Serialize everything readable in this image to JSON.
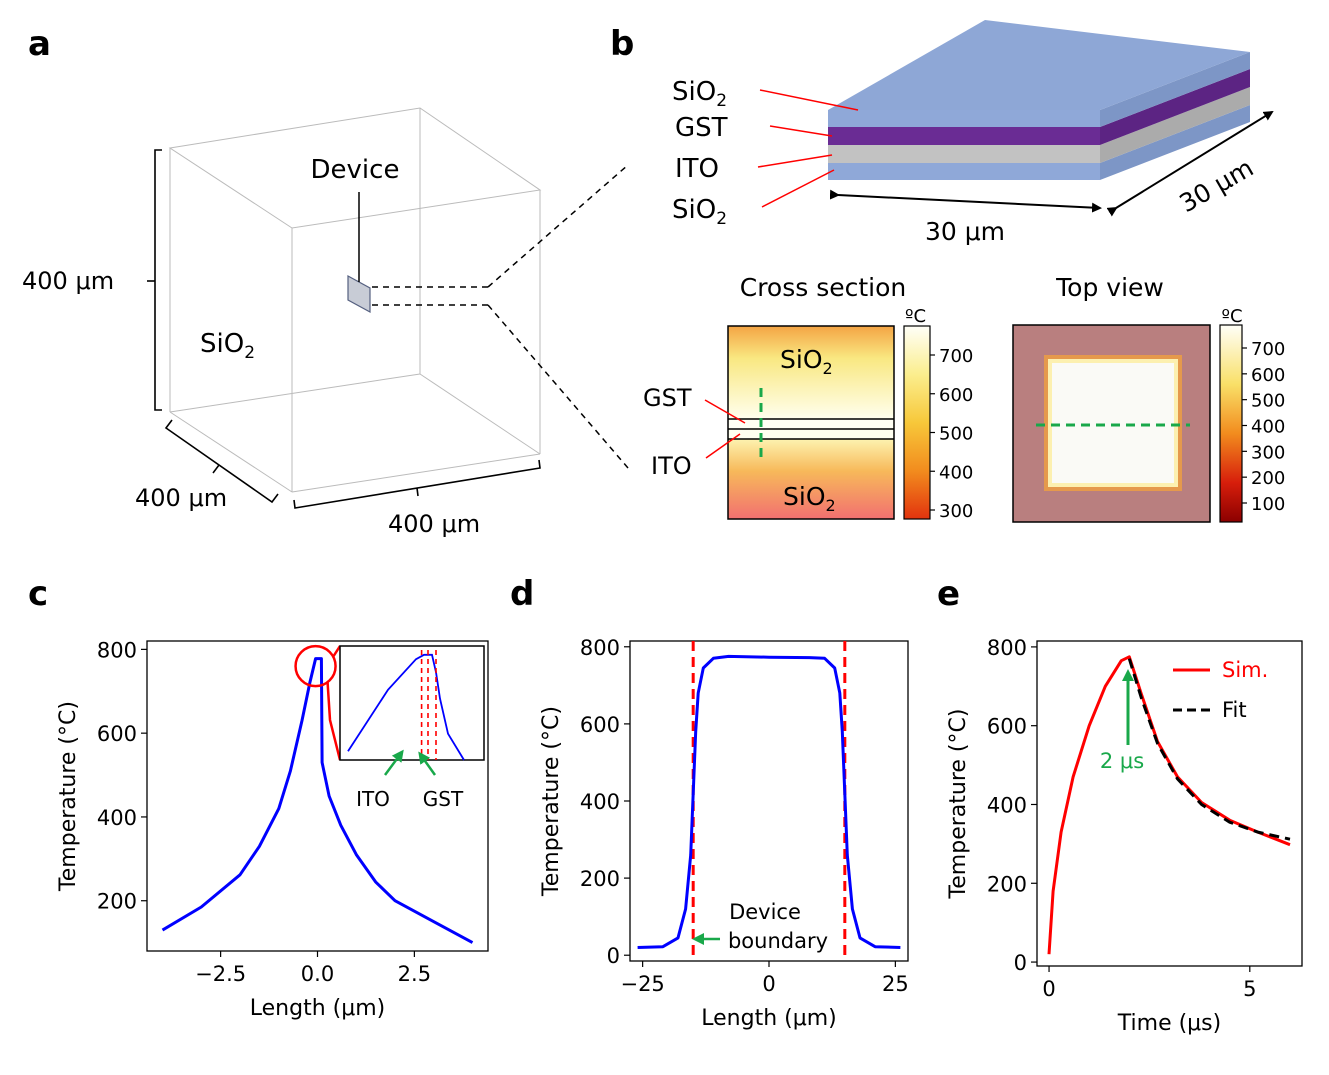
{
  "panel_labels": {
    "a": "a",
    "b": "b",
    "c": "c",
    "d": "d",
    "e": "e"
  },
  "panel_a": {
    "device_label": "Device",
    "dim_height": "400 μm",
    "dim_depth": "400 μm",
    "dim_width": "400 μm",
    "material": "SiO",
    "material_sub": "2"
  },
  "panel_b": {
    "layers": [
      {
        "name": "SiO",
        "sub": "2"
      },
      {
        "name": "GST",
        "sub": ""
      },
      {
        "name": "ITO",
        "sub": ""
      },
      {
        "name": "SiO",
        "sub": "2"
      }
    ],
    "colors": {
      "sio2": "#8FA8D8",
      "gst": "#6A2C94",
      "ito": "#BDBDBD"
    },
    "dim_width": "30 μm",
    "dim_depth": "30 μm",
    "cross_section": {
      "title": "Cross section",
      "top_label": "SiO",
      "top_sub": "2",
      "bottom_label": "SiO",
      "bottom_sub": "2",
      "gst_label": "GST",
      "ito_label": "ITO",
      "colorbar_unit": "ºC",
      "colorbar_ticks": [
        "700",
        "600",
        "500",
        "400",
        "300"
      ]
    },
    "top_view": {
      "title": "Top view",
      "colorbar_unit": "ºC",
      "colorbar_ticks": [
        "700",
        "600",
        "500",
        "400",
        "300",
        "200",
        "100"
      ]
    }
  },
  "chart_data": [
    {
      "id": "c",
      "type": "line",
      "xlabel": "Length (μm)",
      "ylabel": "Temperature (°C)",
      "xlim": [
        -4.4,
        4.4
      ],
      "ylim": [
        80,
        820
      ],
      "xticks": [
        -2.5,
        0.0,
        2.5
      ],
      "xtick_labels": [
        "−2.5",
        "0.0",
        "2.5"
      ],
      "yticks": [
        200,
        400,
        600,
        800
      ],
      "ytick_labels": [
        "200",
        "400",
        "600",
        "800"
      ],
      "series": [
        {
          "name": "Temperature",
          "color": "#0000FF",
          "x": [
            -4.0,
            -3.0,
            -2.0,
            -1.5,
            -1.0,
            -0.7,
            -0.4,
            -0.2,
            -0.05,
            0.1,
            0.12,
            0.3,
            0.6,
            1.0,
            1.5,
            2.0,
            3.0,
            4.0
          ],
          "y": [
            130,
            185,
            262,
            330,
            420,
            510,
            630,
            720,
            778,
            778,
            530,
            450,
            380,
            310,
            245,
            200,
            150,
            100
          ]
        }
      ],
      "inset": {
        "labels": [
          "ITO",
          "GST"
        ],
        "x": [
          -1.0,
          -0.5,
          -0.15,
          -0.05,
          0.05,
          0.1,
          0.15,
          0.25,
          0.45
        ],
        "y": [
          560,
          700,
          770,
          780,
          780,
          740,
          680,
          600,
          540
        ]
      }
    },
    {
      "id": "d",
      "type": "line",
      "xlabel": "Length (μm)",
      "ylabel": "Temperature (°C)",
      "xlim": [
        -27.5,
        27.5
      ],
      "ylim": [
        -15,
        815
      ],
      "xticks": [
        -25,
        0,
        25
      ],
      "xtick_labels": [
        "−25",
        "0",
        "25"
      ],
      "yticks": [
        0,
        200,
        400,
        600,
        800
      ],
      "ytick_labels": [
        "0",
        "200",
        "400",
        "600",
        "800"
      ],
      "series": [
        {
          "name": "Temperature",
          "color": "#0000FF",
          "x": [
            -26,
            -21,
            -18,
            -16.5,
            -15.5,
            -15,
            -14.5,
            -14,
            -13,
            -11,
            -8,
            0,
            8,
            11,
            13,
            14,
            14.5,
            15,
            15.5,
            16.5,
            18,
            21,
            26
          ],
          "y": [
            20,
            22,
            45,
            120,
            260,
            420,
            580,
            680,
            745,
            770,
            775,
            773,
            772,
            770,
            745,
            680,
            580,
            420,
            260,
            120,
            45,
            22,
            20
          ]
        }
      ],
      "vlines": [
        -15,
        15
      ],
      "annotation": [
        "Device",
        "boundary"
      ]
    },
    {
      "id": "e",
      "type": "line",
      "xlabel": "Time (μs)",
      "ylabel": "Temperature (°C)",
      "xlim": [
        -0.3,
        6.3
      ],
      "ylim": [
        -10,
        815
      ],
      "xticks": [
        0,
        5
      ],
      "xtick_labels": [
        "0",
        "5"
      ],
      "yticks": [
        0,
        200,
        400,
        600,
        800
      ],
      "ytick_labels": [
        "0",
        "200",
        "400",
        "600",
        "800"
      ],
      "series": [
        {
          "name": "Sim.",
          "color": "#FF0000",
          "dash": false,
          "x": [
            0,
            0.1,
            0.3,
            0.6,
            1.0,
            1.4,
            1.8,
            2.0,
            2.3,
            2.7,
            3.2,
            3.8,
            4.5,
            5.2,
            6.0
          ],
          "y": [
            20,
            180,
            330,
            470,
            600,
            700,
            765,
            775,
            680,
            560,
            470,
            405,
            360,
            330,
            298
          ]
        },
        {
          "name": "Fit",
          "color": "#000000",
          "dash": true,
          "x": [
            2.0,
            2.3,
            2.7,
            3.2,
            3.8,
            4.5,
            5.2,
            6.0
          ],
          "y": [
            770,
            670,
            555,
            465,
            400,
            355,
            330,
            312
          ]
        }
      ],
      "annotation": "2 μs"
    }
  ]
}
